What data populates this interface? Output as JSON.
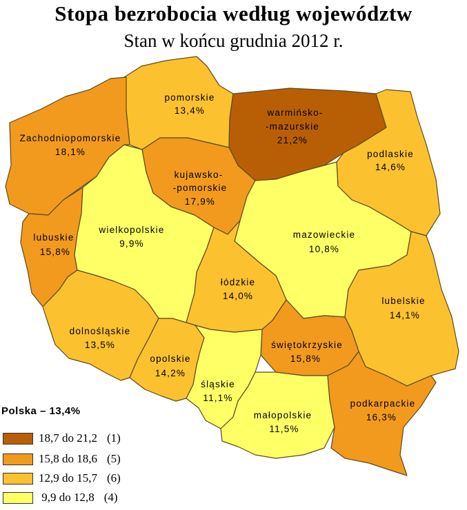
{
  "title": "Stopa bezrobocia według województw",
  "subtitle": "Stan w końcu grudnia 2012 r.",
  "colors": {
    "c1": "#b85f06",
    "c2": "#f29a1e",
    "c3": "#fcc12f",
    "c4": "#ffff66",
    "border": "#5a4a1a"
  },
  "regions": {
    "zachodniopomorskie": {
      "line1": "Zachodniopomorskie",
      "value": "18,1%"
    },
    "pomorskie": {
      "line1": "pomorskie",
      "value": "13,4%"
    },
    "warminsko": {
      "line1": "warmińsko-",
      "line2": "-mazurskie",
      "value": "21,2%"
    },
    "podlaskie": {
      "line1": "podlaskie",
      "value": "14,6%"
    },
    "kujawsko": {
      "line1": "kujawsko-",
      "line2": "-pomorskie",
      "value": "17,9%"
    },
    "lubuskie": {
      "line1": "lubuskie",
      "value": "15,8%"
    },
    "wielkopolskie": {
      "line1": "wielkopolskie",
      "value": "9,9%"
    },
    "mazowieckie": {
      "line1": "mazowieckie",
      "value": "10,8%"
    },
    "lodzkie": {
      "line1": "łódzkie",
      "value": "14,0%"
    },
    "lubelskie": {
      "line1": "lubelskie",
      "value": "14,1%"
    },
    "dolnoslaskie": {
      "line1": "dolnośląskie",
      "value": "13,5%"
    },
    "opolskie": {
      "line1": "opolskie",
      "value": "14,2%"
    },
    "swietokrzyskie": {
      "line1": "świętokrzyskie",
      "value": "15,8%"
    },
    "slaskie": {
      "line1": "śląskie",
      "value": "11,1%"
    },
    "malopolskie": {
      "line1": "małopolskie",
      "value": "11,5%"
    },
    "podkarpackie": {
      "line1": "podkarpackie",
      "value": "16,3%"
    }
  },
  "legend": {
    "title": "Polska – 13,4%",
    "items": [
      {
        "range": "18,7 do 21,2",
        "count": "(1)"
      },
      {
        "range": "15,8 do 18,6",
        "count": "(5)"
      },
      {
        "range": "12,9 do 15,7",
        "count": "(6)"
      },
      {
        "range": " 9,9 do 12,8",
        "count": "(4)"
      }
    ]
  }
}
